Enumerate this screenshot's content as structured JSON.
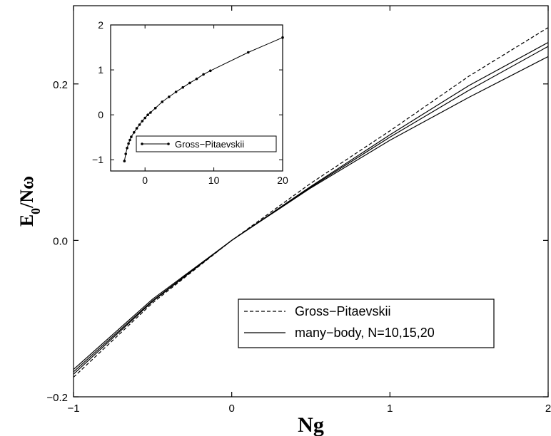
{
  "chart_data": [
    {
      "type": "line",
      "xlabel": "Ng",
      "ylabel_main": "E",
      "ylabel_sub": "0",
      "ylabel_rest": "/Nω",
      "xlim": [
        -1,
        2
      ],
      "ylim": [
        -0.2,
        0.3
      ],
      "xticks": [
        -1,
        0,
        1,
        2
      ],
      "xtick_labels": [
        "−1",
        "0",
        "1",
        "2"
      ],
      "yticks": [
        -0.2,
        0.0,
        0.2
      ],
      "ytick_labels": [
        "−0.2",
        "0.0",
        "0.2"
      ],
      "legend_position": "bottom-right",
      "series": [
        {
          "name": "Gross−Pitaevskii",
          "style": "dashed",
          "x": [
            -1,
            -0.5,
            0,
            0.5,
            1,
            1.5,
            2
          ],
          "y": [
            -0.175,
            -0.08,
            0.0,
            0.073,
            0.14,
            0.21,
            0.272
          ]
        },
        {
          "name": "many−body, N=10,15,20",
          "style": "solid",
          "x": [
            -1,
            -0.5,
            0,
            0.5,
            1,
            1.5,
            2
          ],
          "y": [
            -0.165,
            -0.075,
            0.0,
            0.067,
            0.128,
            0.183,
            0.235
          ]
        },
        {
          "name": "",
          "style": "solid",
          "x": [
            -1,
            -0.5,
            0,
            0.5,
            1,
            1.5,
            2
          ],
          "y": [
            -0.168,
            -0.077,
            0.0,
            0.068,
            0.132,
            0.192,
            0.248
          ]
        },
        {
          "name": "",
          "style": "solid",
          "x": [
            -1,
            -0.5,
            0,
            0.5,
            1,
            1.5,
            2
          ],
          "y": [
            -0.171,
            -0.078,
            0.0,
            0.069,
            0.135,
            0.198,
            0.253
          ]
        }
      ]
    },
    {
      "type": "line",
      "xlim": [
        -5,
        20
      ],
      "ylim": [
        -1.25,
        2
      ],
      "xticks": [
        0,
        10,
        20
      ],
      "xtick_labels": [
        "0",
        "10",
        "20"
      ],
      "yticks": [
        -1,
        0,
        1,
        2
      ],
      "ytick_labels": [
        "−1",
        "0",
        "1",
        "2"
      ],
      "legend_position": "bottom-right",
      "series": [
        {
          "name": "Gross−Pitaevskii",
          "style": "solid-markers",
          "x": [
            -3,
            -2.8,
            -2.6,
            -2.4,
            -2.2,
            -2,
            -1.6,
            -1.2,
            -0.8,
            -0.4,
            0,
            0.4,
            0.8,
            1.5,
            2.5,
            3.5,
            4.5,
            5.5,
            6.5,
            7.5,
            8.5,
            9.5,
            15,
            20
          ],
          "y": [
            -1.03,
            -0.87,
            -0.74,
            -0.64,
            -0.56,
            -0.49,
            -0.39,
            -0.3,
            -0.22,
            -0.14,
            -0.07,
            0.0,
            0.05,
            0.15,
            0.29,
            0.4,
            0.51,
            0.61,
            0.71,
            0.8,
            0.9,
            0.98,
            1.39,
            1.72
          ]
        }
      ]
    }
  ]
}
